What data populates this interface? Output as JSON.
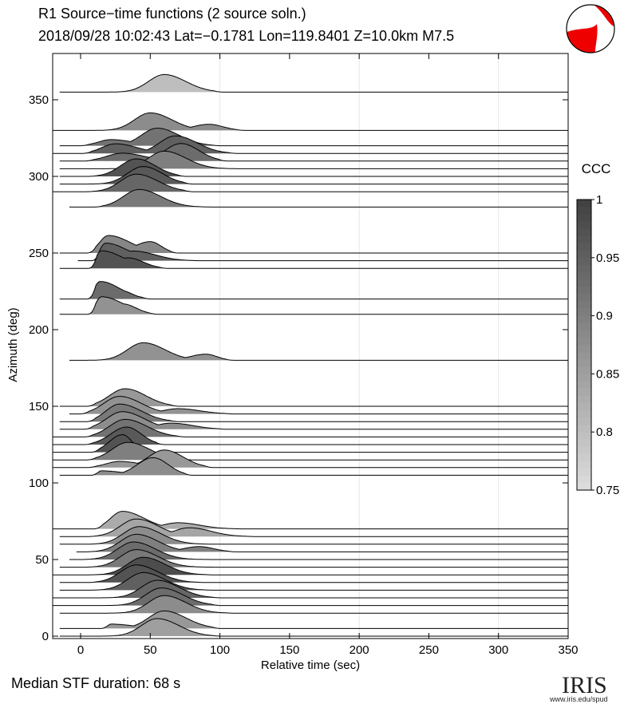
{
  "header": {
    "title": "R1 Source−time functions (2 source soln.)",
    "subtitle": "2018/09/28 10:02:43  Lat=−0.1781 Lon=119.8401  Z=10.0km  M7.5"
  },
  "footer": {
    "median_text": "Median STF duration: 68 s"
  },
  "logo": {
    "word": "IRIS",
    "url": "www.iris.edu/spud"
  },
  "colorbar": {
    "label": "CCC",
    "ticks": [
      "1",
      "0.95",
      "0.9",
      "0.85",
      "0.8",
      "0.75"
    ],
    "range": [
      0.75,
      1.0
    ]
  },
  "beachball": {
    "fill_color": "#ee0000",
    "outline_color": "#000000"
  },
  "chart_data": {
    "type": "area",
    "title": "R1 Source−time functions (2 source soln.)",
    "xlabel": "Relative time (sec)",
    "ylabel": "Azimuth (deg)",
    "xlim": [
      -20,
      350
    ],
    "ylim": [
      0,
      375
    ],
    "xticks": [
      "0",
      "50",
      "100",
      "150",
      "200",
      "250",
      "300",
      "350"
    ],
    "yticks": [
      "0",
      "50",
      "100",
      "150",
      "200",
      "250",
      "300",
      "350"
    ],
    "grid": "vertical",
    "series": [
      {
        "az": 355,
        "start": -15,
        "t0": 3,
        "t1": 102,
        "peaks": [
          [
            60,
            1.0
          ]
        ],
        "ccc": 0.8
      },
      {
        "az": 330,
        "start": -20,
        "t0": 5,
        "t1": 118,
        "peaks": [
          [
            50,
            1.0
          ],
          [
            92,
            0.35
          ]
        ],
        "ccc": 0.88
      },
      {
        "az": 320,
        "start": -15,
        "t0": 0,
        "t1": 100,
        "peaks": [
          [
            22,
            0.35
          ],
          [
            55,
            1.0
          ]
        ],
        "ccc": 0.92
      },
      {
        "az": 315,
        "start": -20,
        "t0": 2,
        "t1": 112,
        "peaks": [
          [
            25,
            0.55
          ],
          [
            68,
            1.0
          ]
        ],
        "ccc": 0.95
      },
      {
        "az": 310,
        "start": -15,
        "t0": 3,
        "t1": 105,
        "peaks": [
          [
            30,
            0.45
          ],
          [
            72,
            1.0
          ]
        ],
        "ccc": 0.93
      },
      {
        "az": 305,
        "start": -15,
        "t0": 0,
        "t1": 115,
        "peaks": [
          [
            60,
            1.0
          ]
        ],
        "ccc": 0.9
      },
      {
        "az": 300,
        "start": -15,
        "t0": 5,
        "t1": 75,
        "peaks": [
          [
            40,
            1.0
          ]
        ],
        "ccc": 0.97
      },
      {
        "az": 295,
        "start": -15,
        "t0": 0,
        "t1": 80,
        "peaks": [
          [
            45,
            1.0
          ]
        ],
        "ccc": 0.96
      },
      {
        "az": 290,
        "start": -20,
        "t0": 3,
        "t1": 80,
        "peaks": [
          [
            40,
            1.0
          ]
        ],
        "ccc": 0.94
      },
      {
        "az": 280,
        "start": -8,
        "t0": 10,
        "t1": 95,
        "peaks": [
          [
            42,
            1.0
          ]
        ],
        "ccc": 0.91
      },
      {
        "az": 250,
        "start": -15,
        "t0": 5,
        "t1": 70,
        "peaks": [
          [
            20,
            1.0
          ],
          [
            50,
            0.65
          ]
        ],
        "ccc": 0.89
      },
      {
        "az": 245,
        "start": -2,
        "t0": 8,
        "t1": 85,
        "peaks": [
          [
            18,
            1.0
          ],
          [
            38,
            0.55
          ]
        ],
        "ccc": 0.95
      },
      {
        "az": 240,
        "start": -15,
        "t0": 6,
        "t1": 62,
        "peaks": [
          [
            15,
            1.0
          ],
          [
            34,
            0.6
          ]
        ],
        "ccc": 0.97
      },
      {
        "az": 220,
        "start": -15,
        "t0": 5,
        "t1": 50,
        "peaks": [
          [
            14,
            1.0
          ],
          [
            28,
            0.5
          ]
        ],
        "ccc": 0.93
      },
      {
        "az": 210,
        "start": -15,
        "t0": 5,
        "t1": 55,
        "peaks": [
          [
            15,
            1.0
          ],
          [
            30,
            0.6
          ]
        ],
        "ccc": 0.87
      },
      {
        "az": 180,
        "start": -8,
        "t0": 0,
        "t1": 110,
        "peaks": [
          [
            45,
            1.0
          ],
          [
            90,
            0.35
          ]
        ],
        "ccc": 0.87
      },
      {
        "az": 150,
        "start": -15,
        "t0": 5,
        "t1": 70,
        "peaks": [
          [
            32,
            1.0
          ]
        ],
        "ccc": 0.86
      },
      {
        "az": 145,
        "start": -8,
        "t0": 0,
        "t1": 110,
        "peaks": [
          [
            28,
            1.0
          ],
          [
            70,
            0.3
          ]
        ],
        "ccc": 0.87
      },
      {
        "az": 140,
        "start": -15,
        "t0": 5,
        "t1": 70,
        "peaks": [
          [
            28,
            1.0
          ]
        ],
        "ccc": 0.91
      },
      {
        "az": 135,
        "start": -15,
        "t0": 3,
        "t1": 105,
        "peaks": [
          [
            30,
            1.0
          ],
          [
            65,
            0.35
          ]
        ],
        "ccc": 0.88
      },
      {
        "az": 130,
        "start": -20,
        "t0": 3,
        "t1": 75,
        "peaks": [
          [
            32,
            1.0
          ]
        ],
        "ccc": 0.92
      },
      {
        "az": 125,
        "start": -20,
        "t0": 3,
        "t1": 60,
        "peaks": [
          [
            33,
            1.0
          ]
        ],
        "ccc": 0.96
      },
      {
        "az": 120,
        "start": -20,
        "t0": 8,
        "t1": 48,
        "peaks": [
          [
            30,
            1.0
          ]
        ],
        "ccc": 0.97
      },
      {
        "az": 115,
        "start": -20,
        "t0": 5,
        "t1": 80,
        "peaks": [
          [
            34,
            1.0
          ],
          [
            55,
            0.35
          ]
        ],
        "ccc": 0.9
      },
      {
        "az": 110,
        "start": -20,
        "t0": 5,
        "t1": 95,
        "peaks": [
          [
            60,
            1.0
          ],
          [
            28,
            0.35
          ]
        ],
        "ccc": 0.86
      },
      {
        "az": 105,
        "start": -15,
        "t0": 8,
        "t1": 80,
        "peaks": [
          [
            15,
            0.25
          ],
          [
            52,
            1.0
          ]
        ],
        "ccc": 0.88
      },
      {
        "az": 70,
        "start": -20,
        "t0": 10,
        "t1": 115,
        "peaks": [
          [
            30,
            1.0
          ],
          [
            70,
            0.35
          ]
        ],
        "ccc": 0.83
      },
      {
        "az": 65,
        "start": -15,
        "t0": 5,
        "t1": 125,
        "peaks": [
          [
            40,
            1.0
          ],
          [
            78,
            0.5
          ]
        ],
        "ccc": 0.84
      },
      {
        "az": 60,
        "start": -15,
        "t0": 3,
        "t1": 105,
        "peaks": [
          [
            42,
            1.0
          ]
        ],
        "ccc": 0.88
      },
      {
        "az": 55,
        "start": -3,
        "t0": 2,
        "t1": 112,
        "peaks": [
          [
            40,
            1.0
          ],
          [
            85,
            0.3
          ]
        ],
        "ccc": 0.9
      },
      {
        "az": 50,
        "start": -8,
        "t0": 0,
        "t1": 105,
        "peaks": [
          [
            38,
            1.0
          ]
        ],
        "ccc": 0.93
      },
      {
        "az": 45,
        "start": -15,
        "t0": 2,
        "t1": 100,
        "peaks": [
          [
            40,
            1.0
          ]
        ],
        "ccc": 0.91
      },
      {
        "az": 40,
        "start": -20,
        "t0": 3,
        "t1": 95,
        "peaks": [
          [
            45,
            1.0
          ]
        ],
        "ccc": 0.98
      },
      {
        "az": 35,
        "start": -15,
        "t0": 5,
        "t1": 90,
        "peaks": [
          [
            40,
            1.0
          ]
        ],
        "ccc": 0.97
      },
      {
        "az": 30,
        "start": -15,
        "t0": 5,
        "t1": 95,
        "peaks": [
          [
            45,
            1.0
          ]
        ],
        "ccc": 0.95
      },
      {
        "az": 25,
        "start": -20,
        "t0": 5,
        "t1": 100,
        "peaks": [
          [
            55,
            1.0
          ]
        ],
        "ccc": 0.94
      },
      {
        "az": 20,
        "start": -20,
        "t0": 3,
        "t1": 100,
        "peaks": [
          [
            58,
            1.0
          ]
        ],
        "ccc": 0.93
      },
      {
        "az": 15,
        "start": -15,
        "t0": 0,
        "t1": 110,
        "peaks": [
          [
            60,
            1.0
          ]
        ],
        "ccc": 0.88
      },
      {
        "az": 5,
        "start": -15,
        "t0": 15,
        "t1": 100,
        "peaks": [
          [
            22,
            0.25
          ],
          [
            60,
            1.0
          ]
        ],
        "ccc": 0.86
      },
      {
        "az": 0,
        "start": -15,
        "t0": 10,
        "t1": 100,
        "peaks": [
          [
            55,
            1.0
          ]
        ],
        "ccc": 0.85
      }
    ]
  }
}
